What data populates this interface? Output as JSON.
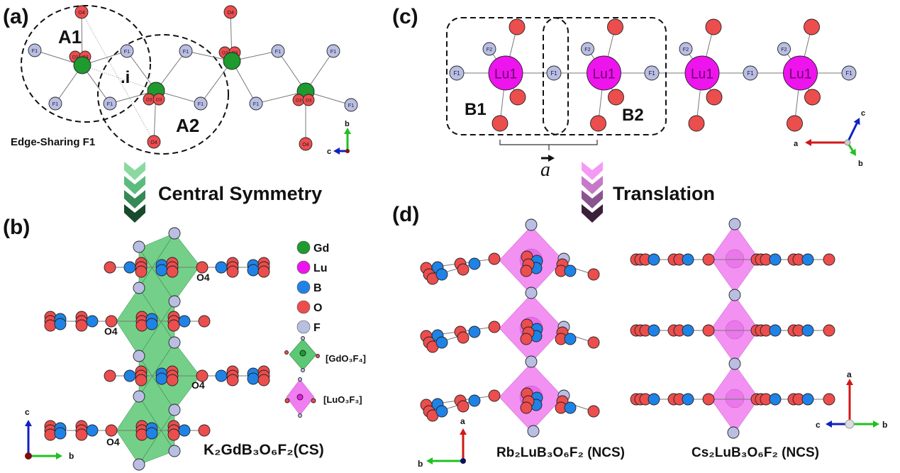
{
  "panels": {
    "a": "(a)",
    "b": "(b)",
    "c": "(c)",
    "d": "(d)"
  },
  "panel_a": {
    "A1": "A1",
    "A2": "A2",
    "inversion": ".i",
    "caption": "Edge-Sharing F1",
    "atoms": {
      "O4": "O4",
      "O3": "O3",
      "F1": "F1"
    },
    "axes": {
      "b": "b",
      "c": "c"
    }
  },
  "arrow_ab": {
    "label": "Central Symmetry"
  },
  "panel_b": {
    "O4": "O4",
    "formula": "K₂GdB₃O₆F₂(CS)",
    "axes": {
      "c": "c",
      "b": "b"
    },
    "legend": [
      {
        "label": "Gd",
        "element": "Gd"
      },
      {
        "label": "Lu",
        "element": "Lu"
      },
      {
        "label": "B",
        "element": "B"
      },
      {
        "label": "O",
        "element": "O"
      },
      {
        "label": "F",
        "element": "F"
      }
    ],
    "polyhedra": [
      "[GdO₃F₄]",
      "[LuO₃F₃]"
    ]
  },
  "panel_c": {
    "B1": "B1",
    "B2": "B2",
    "vector": "a",
    "atoms": {
      "Lu1": "Lu1",
      "F1": "F1",
      "F2": "F2"
    },
    "axes": {
      "a": "a",
      "b": "b",
      "c": "c"
    }
  },
  "arrow_cd": {
    "label": "Translation"
  },
  "panel_d": {
    "formula_left": "Rb₂LuB₃O₆F₂ (NCS)",
    "formula_right": "Cs₂LuB₃O₆F₂ (NCS)",
    "axes_left": {
      "a": "a",
      "b": "b"
    },
    "axes_right": {
      "a": "a",
      "b": "b",
      "c": "c"
    }
  },
  "colors": {
    "Gd": "#1e9a2e",
    "Lu": "#ee14ee",
    "B": "#1f82e6",
    "O": "#ec4d4d",
    "F": "#b9bee2",
    "gd_polyhedron": "#5cc874",
    "lu_polyhedron": "#f07ef0",
    "axis_a": "#d01818",
    "axis_b": "#22c022",
    "axis_c": "#1020c0"
  }
}
